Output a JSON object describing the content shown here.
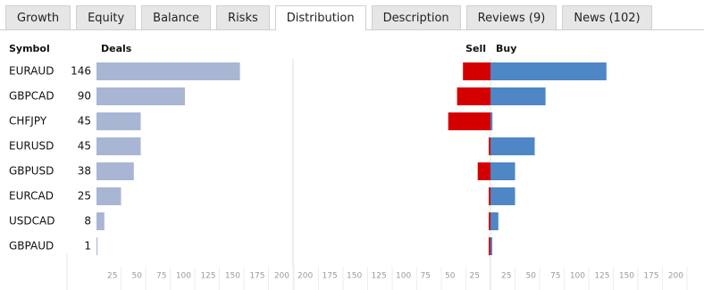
{
  "tabs": [
    "Growth",
    "Equity",
    "Balance",
    "Risks",
    "Distribution",
    "Description",
    "Reviews (9)",
    "News (102)"
  ],
  "active_tab": 4,
  "table": {
    "headers": {
      "symbol": "Symbol",
      "deals": "Deals",
      "sell": "Sell",
      "buy": "Buy"
    },
    "rows": [
      {
        "symbol": "EURAUD",
        "deals": 146,
        "sell": 28,
        "buy": 118
      },
      {
        "symbol": "GBPCAD",
        "deals": 90,
        "sell": 34,
        "buy": 56
      },
      {
        "symbol": "CHFJPY",
        "deals": 45,
        "sell": 43,
        "buy": 2
      },
      {
        "symbol": "EURUSD",
        "deals": 45,
        "sell": 0,
        "buy": 45
      },
      {
        "symbol": "GBPUSD",
        "deals": 38,
        "sell": 13,
        "buy": 25
      },
      {
        "symbol": "EURCAD",
        "deals": 25,
        "sell": 0,
        "buy": 25
      },
      {
        "symbol": "USDCAD",
        "deals": 8,
        "sell": 0,
        "buy": 8
      },
      {
        "symbol": "GBPAUD",
        "deals": 1,
        "sell": 0,
        "buy": 1
      }
    ]
  },
  "deals_axis": {
    "xlim": [
      0,
      200
    ],
    "xticks": [
      25,
      50,
      75,
      100,
      125,
      150,
      175,
      200
    ]
  },
  "distribution_axis": {
    "xlim": [
      0,
      200
    ],
    "xticks": [
      25,
      50,
      75,
      100,
      125,
      150,
      175,
      200
    ]
  },
  "colors": {
    "deals": "#a9b6d3",
    "sell": "#d40000",
    "buy": "#4e86c6"
  }
}
